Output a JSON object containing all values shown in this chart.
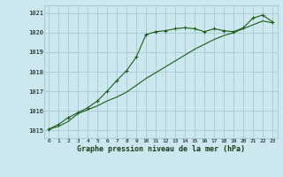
{
  "title": "Graphe pression niveau de la mer (hPa)",
  "background_color": "#cce8ee",
  "grid_color": "#aacdd5",
  "line_color": "#1a5c1a",
  "x_labels": [
    "0",
    "1",
    "2",
    "3",
    "4",
    "5",
    "6",
    "7",
    "8",
    "9",
    "10",
    "11",
    "12",
    "13",
    "14",
    "15",
    "16",
    "17",
    "18",
    "19",
    "20",
    "21",
    "22",
    "23"
  ],
  "ylim": [
    1014.6,
    1021.4
  ],
  "yticks": [
    1015,
    1016,
    1017,
    1018,
    1019,
    1020,
    1021
  ],
  "series1_x": [
    0,
    1,
    2,
    3,
    4,
    5,
    6,
    7,
    8,
    9,
    10,
    11,
    12,
    13,
    14,
    15,
    16,
    17,
    18,
    19,
    20,
    21,
    22,
    23
  ],
  "series1_y": [
    1015.05,
    1015.3,
    1015.65,
    1015.9,
    1016.15,
    1016.5,
    1017.0,
    1017.55,
    1018.05,
    1018.75,
    1019.9,
    1020.05,
    1020.1,
    1020.2,
    1020.25,
    1020.2,
    1020.05,
    1020.2,
    1020.1,
    1020.05,
    1020.25,
    1020.75,
    1020.9,
    1020.55
  ],
  "series2_x": [
    0,
    1,
    2,
    3,
    4,
    5,
    6,
    7,
    8,
    9,
    10,
    11,
    12,
    13,
    14,
    15,
    16,
    17,
    18,
    19,
    20,
    21,
    22,
    23
  ],
  "series2_y": [
    1015.05,
    1015.2,
    1015.45,
    1015.85,
    1016.05,
    1016.25,
    1016.5,
    1016.7,
    1016.95,
    1017.3,
    1017.65,
    1017.95,
    1018.25,
    1018.55,
    1018.85,
    1019.15,
    1019.4,
    1019.65,
    1019.85,
    1020.0,
    1020.2,
    1020.4,
    1020.6,
    1020.5
  ]
}
